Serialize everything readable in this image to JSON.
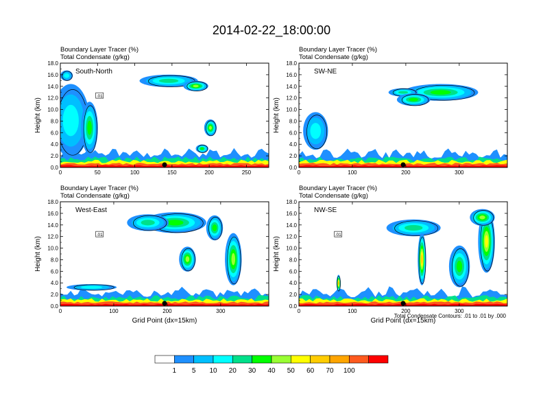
{
  "figure_title": "2014-02-22_18:00:00",
  "colorbar": {
    "labels": [
      "1",
      "5",
      "10",
      "20",
      "30",
      "40",
      "50",
      "60",
      "70",
      "100"
    ],
    "colors": [
      "#ffffff",
      "#1e90ff",
      "#00bfff",
      "#00ffff",
      "#00e08a",
      "#00ff00",
      "#99ff33",
      "#ffff00",
      "#ffcc00",
      "#ffa500",
      "#ff5a1e",
      "#ff0000"
    ]
  },
  "contour_note": "Total Condensate Contours: .01 to .01 by .000",
  "chart_data": [
    {
      "type": "contour",
      "panel_label": "South-North",
      "title_line1": "Boundary Layer Tracer   (%)",
      "title_line2": "Total Condensate   (g/kg)",
      "xlabel": "",
      "ylabel": "Height (km)",
      "xlim": [
        0,
        280
      ],
      "ylim": [
        0,
        18
      ],
      "xticks": [
        0,
        50,
        100,
        150,
        200,
        250
      ],
      "yticks": [
        "0.0",
        "2.0",
        "4.0",
        "6.0",
        "8.0",
        "10.0",
        "12.0",
        "14.0",
        "16.0",
        "18.0"
      ],
      "marker_x": 140,
      "contour_label": ".01"
    },
    {
      "type": "contour",
      "panel_label": "SW-NE",
      "title_line1": "Boundary Layer Tracer   (%)",
      "title_line2": "Total Condensate   (g/kg)",
      "xlabel": "",
      "ylabel": "Height (km)",
      "xlim": [
        0,
        390
      ],
      "ylim": [
        0,
        18
      ],
      "xticks": [
        0,
        100,
        200,
        300
      ],
      "yticks": [
        "0.0",
        "2.0",
        "4.0",
        "6.0",
        "8.0",
        "10.0",
        "12.0",
        "14.0",
        "16.0",
        "18.0"
      ],
      "marker_x": 195,
      "contour_label": ""
    },
    {
      "type": "contour",
      "panel_label": "West-East",
      "title_line1": "Boundary Layer Tracer   (%)",
      "title_line2": "Total Condensate   (g/kg)",
      "xlabel": "Grid Point (dx=15km)",
      "ylabel": "Height (km)",
      "xlim": [
        0,
        390
      ],
      "ylim": [
        0,
        18
      ],
      "xticks": [
        0,
        100,
        200,
        300
      ],
      "yticks": [
        "0.0",
        "2.0",
        "4.0",
        "6.0",
        "8.0",
        "10.0",
        "12.0",
        "14.0",
        "16.0",
        "18.0"
      ],
      "marker_x": 195,
      "contour_label": ".01"
    },
    {
      "type": "contour",
      "panel_label": "NW-SE",
      "title_line1": "Boundary Layer Tracer   (%)",
      "title_line2": "Total Condensate   (g/kg)",
      "xlabel": "Grid Point (dx=15km)",
      "ylabel": "Height (km)",
      "xlim": [
        0,
        390
      ],
      "ylim": [
        0,
        18
      ],
      "xticks": [
        0,
        100,
        200,
        300
      ],
      "yticks": [
        "0.0",
        "2.0",
        "4.0",
        "6.0",
        "8.0",
        "10.0",
        "12.0",
        "14.0",
        "16.0",
        "18.0"
      ],
      "marker_x": 195,
      "contour_label": ".01"
    }
  ]
}
